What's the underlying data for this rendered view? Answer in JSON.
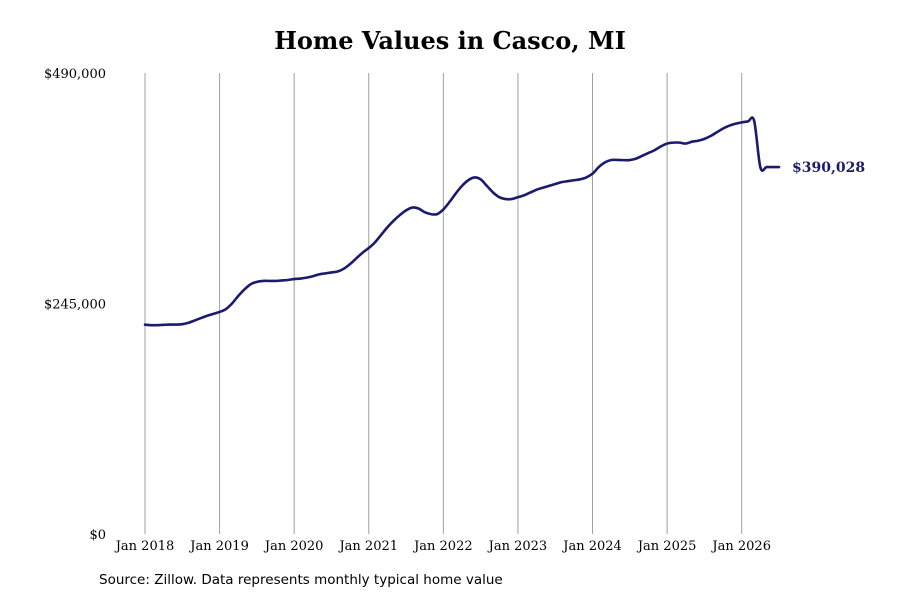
{
  "chart_data": {
    "type": "line",
    "title": "Home Values in Casco, MI",
    "source": "Source: Zillow. Data represents monthly typical home value",
    "xlabel": "",
    "ylabel": "",
    "ylim": [
      0,
      490000
    ],
    "yticks": [
      0,
      245000,
      490000
    ],
    "ytick_labels": [
      "$0",
      "$245,000",
      "$490,000"
    ],
    "xlim": [
      "2018-01",
      "2026-07"
    ],
    "xtick_labels": [
      "Jan 2018",
      "Jan 2019",
      "Jan 2020",
      "Jan 2021",
      "Jan 2022",
      "Jan 2023",
      "Jan 2024",
      "Jan 2025",
      "Jan 2026"
    ],
    "xtick_dates": [
      "2018-01",
      "2019-01",
      "2020-01",
      "2021-01",
      "2022-01",
      "2023-01",
      "2024-01",
      "2025-01",
      "2026-01"
    ],
    "grid": "vertical",
    "line_color": "#1a1a6e",
    "end_label": "$390,028",
    "series": [
      {
        "x": [
          "2018-01",
          "2018-02",
          "2018-03",
          "2018-04",
          "2018-05",
          "2018-06",
          "2018-07",
          "2018-08",
          "2018-09",
          "2018-10",
          "2018-11",
          "2018-12",
          "2019-01",
          "2019-02",
          "2019-03",
          "2019-04",
          "2019-05",
          "2019-06",
          "2019-07",
          "2019-08",
          "2019-09",
          "2019-10",
          "2019-11",
          "2019-12",
          "2020-01",
          "2020-02",
          "2020-03",
          "2020-04",
          "2020-05",
          "2020-06",
          "2020-07",
          "2020-08",
          "2020-09",
          "2020-10",
          "2020-11",
          "2020-12",
          "2021-01",
          "2021-02",
          "2021-03",
          "2021-04",
          "2021-05",
          "2021-06",
          "2021-07",
          "2021-08",
          "2021-09",
          "2021-10",
          "2021-11",
          "2021-12",
          "2022-01",
          "2022-02",
          "2022-03",
          "2022-04",
          "2022-05",
          "2022-06",
          "2022-07",
          "2022-08",
          "2022-09",
          "2022-10",
          "2022-11",
          "2022-12",
          "2023-01",
          "2023-02",
          "2023-03",
          "2023-04",
          "2023-05",
          "2023-06",
          "2023-07",
          "2023-08",
          "2023-09",
          "2023-10",
          "2023-11",
          "2023-12",
          "2024-01",
          "2024-02",
          "2024-03",
          "2024-04",
          "2024-05",
          "2024-06",
          "2024-07",
          "2024-08",
          "2024-09",
          "2024-10",
          "2024-11",
          "2024-12",
          "2025-01",
          "2025-02",
          "2025-03",
          "2025-04",
          "2025-05",
          "2025-06",
          "2025-07",
          "2025-08",
          "2025-09",
          "2025-10",
          "2025-11",
          "2025-12",
          "2026-01",
          "2026-02",
          "2026-03",
          "2026-04",
          "2026-05",
          "2026-06",
          "2026-07"
        ],
        "values": [
          222500,
          222000,
          222000,
          222300,
          222600,
          222600,
          223000,
          224500,
          227000,
          229500,
          232000,
          234000,
          236000,
          239000,
          245000,
          253000,
          260000,
          265500,
          268000,
          269000,
          269000,
          269000,
          269500,
          270000,
          271000,
          271500,
          272500,
          274000,
          276000,
          277000,
          278000,
          279000,
          282000,
          287000,
          293000,
          299000,
          304000,
          310000,
          318000,
          326000,
          333000,
          339000,
          344000,
          347000,
          346000,
          342000,
          340000,
          340000,
          345000,
          353000,
          362000,
          370000,
          376000,
          379000,
          377000,
          370000,
          363000,
          358000,
          356000,
          356000,
          358000,
          360000,
          363000,
          366000,
          368000,
          370000,
          372000,
          374000,
          375000,
          376000,
          377000,
          379000,
          383000,
          390000,
          395000,
          397500,
          397600,
          397400,
          397500,
          399000,
          402000,
          405000,
          408000,
          412000,
          415000,
          416000,
          416000,
          415000,
          417000,
          418000,
          420000,
          423000,
          427000,
          431000,
          434000,
          436000,
          437500,
          438500,
          439200,
          389800,
          390028,
          390028,
          390028
        ]
      }
    ]
  }
}
